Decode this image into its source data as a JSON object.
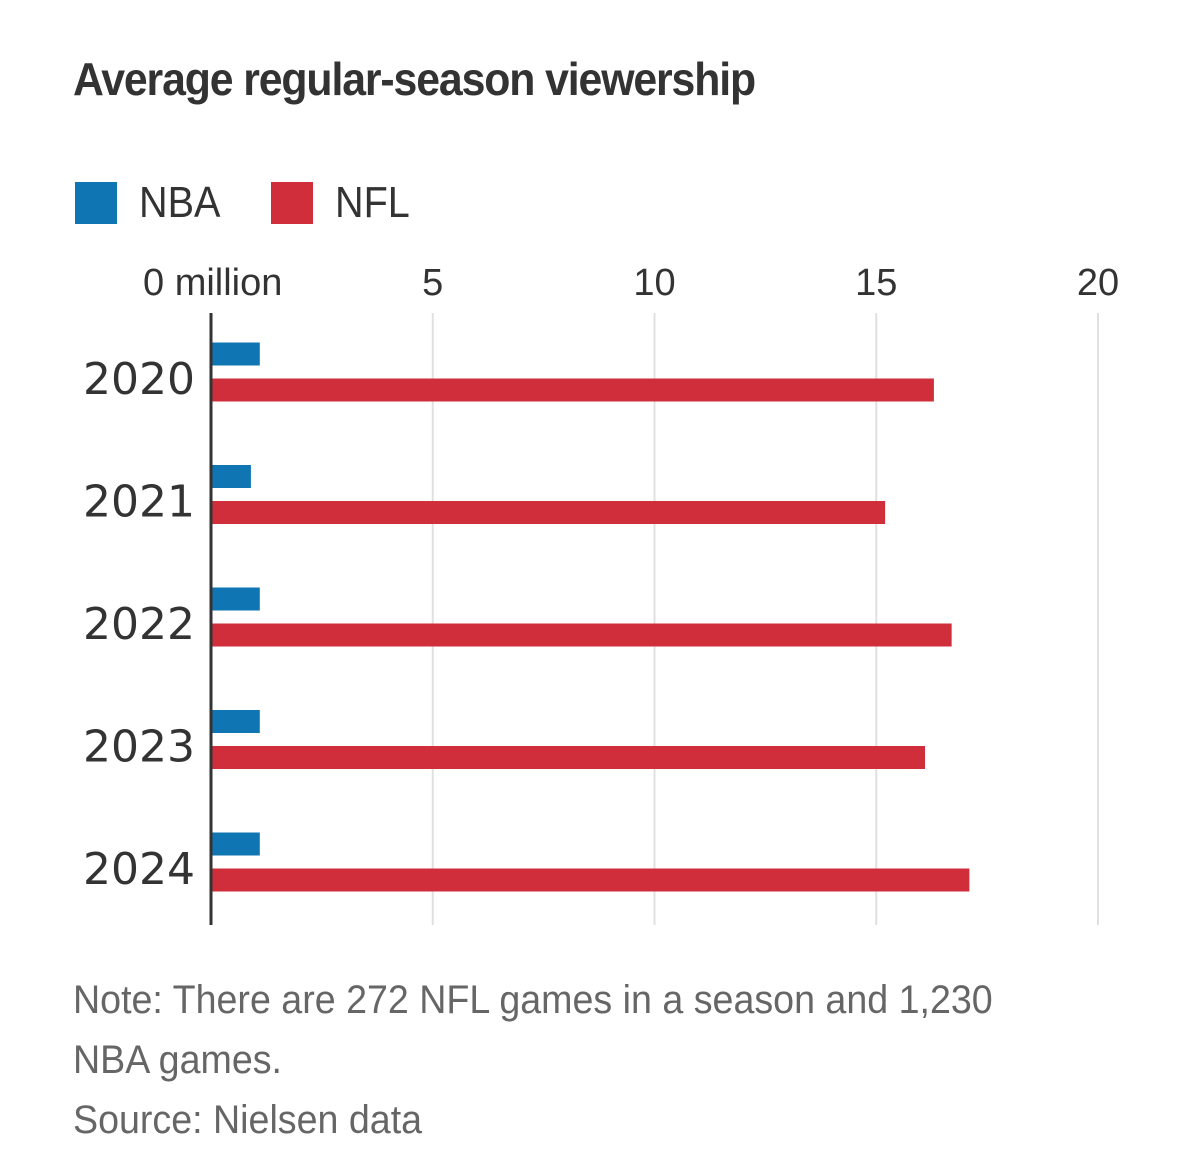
{
  "chart_data": {
    "type": "bar",
    "orientation": "horizontal",
    "title": "Average regular-season viewership",
    "xlabel": "",
    "ylabel": "",
    "unit_label": "million",
    "xlim": [
      0,
      20
    ],
    "x_ticks": [
      0,
      5,
      10,
      15,
      20
    ],
    "x_tick_labels": [
      "0 million",
      "5",
      "10",
      "15",
      "20"
    ],
    "grid": true,
    "legend_position": "top-left",
    "categories": [
      "2020",
      "2021",
      "2022",
      "2023",
      "2024"
    ],
    "series": [
      {
        "name": "NBA",
        "color": "#0f76b3",
        "values": [
          1.1,
          0.9,
          1.1,
          1.1,
          1.1
        ]
      },
      {
        "name": "NFL",
        "color": "#cf2e3a",
        "values": [
          16.3,
          15.2,
          16.7,
          16.1,
          17.1
        ]
      }
    ],
    "annotations": [
      "Note: There are 272 NFL games in a season and 1,230 NBA games.",
      "Source: Nielsen data"
    ]
  },
  "footnotes": {
    "note_line1": "Note: There are 272 NFL games in a season and 1,230",
    "note_line2": "NBA games.",
    "source": "Source: Nielsen data"
  },
  "colors": {
    "text": "#333333",
    "muted_text": "#666666",
    "grid": "#e0e0e0",
    "axis": "#333333"
  }
}
